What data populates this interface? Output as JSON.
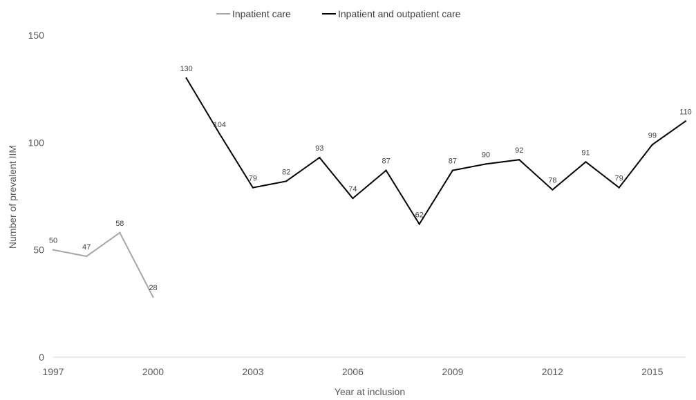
{
  "chart_data": {
    "type": "line",
    "title": "",
    "xlabel": "Year at inclusion",
    "ylabel": "Number of prevalent IIM",
    "ylim": [
      0,
      150
    ],
    "xlim": [
      1997,
      2016
    ],
    "y_ticks": [
      "0",
      "50",
      "100",
      "150"
    ],
    "x_ticks": [
      "1997",
      "2000",
      "2003",
      "2006",
      "2009",
      "2012",
      "2015"
    ],
    "grid": false,
    "legend_position": "top",
    "series": [
      {
        "name": "Inpatient care",
        "color": "#a6a6a6",
        "x": [
          1997,
          1998,
          1999,
          2000
        ],
        "values": [
          50,
          47,
          58,
          28
        ],
        "labels": [
          "50",
          "47",
          "58",
          "28"
        ]
      },
      {
        "name": "Inpatient and outpatient care",
        "color": "#000000",
        "x": [
          2001,
          2002,
          2003,
          2004,
          2005,
          2006,
          2007,
          2008,
          2009,
          2010,
          2011,
          2012,
          2013,
          2014,
          2015,
          2016
        ],
        "values": [
          130,
          104,
          79,
          82,
          93,
          74,
          87,
          62,
          87,
          90,
          92,
          78,
          91,
          79,
          99,
          110
        ],
        "labels": [
          "130",
          "104",
          "79",
          "82",
          "93",
          "74",
          "87",
          "62",
          "87",
          "90",
          "92",
          "78",
          "91",
          "79",
          "99",
          "110"
        ]
      }
    ]
  }
}
